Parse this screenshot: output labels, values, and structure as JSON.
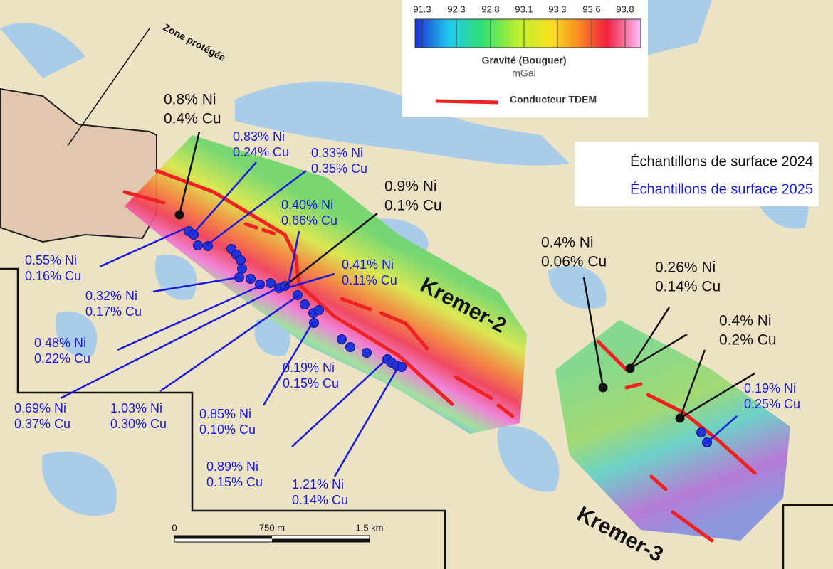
{
  "legend": {
    "ticks": [
      "91.3",
      "92.3",
      "92.8",
      "93.1",
      "93.3",
      "93.6",
      "93.8"
    ],
    "title": "Gravité (Bouguer)",
    "unit": "mGal",
    "conductor": "Conducteur TDEM"
  },
  "sample_legend": {
    "y2024": "Échantillons de surface 2024",
    "y2025": "Échantillons de surface 2025"
  },
  "zone": "Zone protégée",
  "targets": [
    "Kremer-2",
    "Kremer-3"
  ],
  "scale": [
    "0",
    "750 m",
    "1.5 km"
  ],
  "samples": [
    {
      "ni": "0.8% Ni",
      "cu": "0.4% Cu"
    },
    {
      "ni": "0.9% Ni",
      "cu": "0.1% Cu"
    },
    {
      "ni": "0.4% Ni",
      "cu": "0.06% Cu"
    },
    {
      "ni": "0.26% Ni",
      "cu": "0.14% Cu"
    },
    {
      "ni": "0.4% Ni",
      "cu": "0.2% Cu"
    },
    {
      "ni": "0.83% Ni",
      "cu": "0.24% Cu"
    },
    {
      "ni": "0.33% Ni",
      "cu": "0.35% Cu"
    },
    {
      "ni": "0.40% Ni",
      "cu": "0.66% Cu"
    },
    {
      "ni": "0.41% Ni",
      "cu": "0.11% Cu"
    },
    {
      "ni": "0.55% Ni",
      "cu": "0.16% Cu"
    },
    {
      "ni": "0.32% Ni",
      "cu": "0.17% Cu"
    },
    {
      "ni": "0.48% Ni",
      "cu": "0.22% Cu"
    },
    {
      "ni": "0.19% Ni",
      "cu": "0.15% Cu"
    },
    {
      "ni": "0.69% Ni",
      "cu": "0.37% Cu"
    },
    {
      "ni": "1.03% Ni",
      "cu": "0.30% Cu"
    },
    {
      "ni": "0.85% Ni",
      "cu": "0.10% Cu"
    },
    {
      "ni": "0.89% Ni",
      "cu": "0.15% Cu"
    },
    {
      "ni": "1.21% Ni",
      "cu": "0.14% Cu"
    },
    {
      "ni": "0.19% Ni",
      "cu": "0.25% Cu"
    }
  ]
}
